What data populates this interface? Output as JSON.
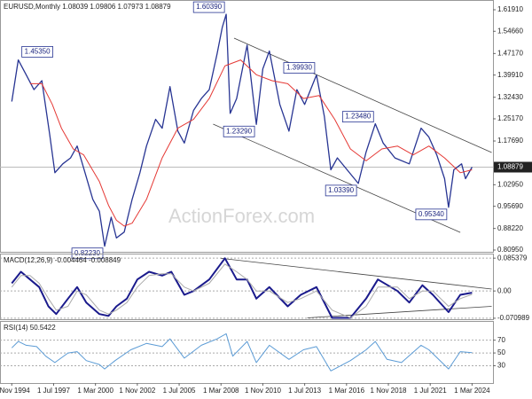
{
  "chart_data": [
    {
      "type": "line",
      "title": "EURUSD,Monthly  1.08039 1.09806 1.07973 1.08879",
      "watermark": "ActionForex.com",
      "xlim": [
        "1994-02",
        "2025-07"
      ],
      "ylim": [
        0.8035,
        1.652
      ],
      "yticks": [
        {
          "value": 0.8095,
          "label": "0.80950"
        },
        {
          "value": 0.8822,
          "label": "0.88220"
        },
        {
          "value": 0.9569,
          "label": "0.95690"
        },
        {
          "value": 1.0295,
          "label": "1.02950"
        },
        {
          "value": 1.1769,
          "label": "1.17690"
        },
        {
          "value": 1.2517,
          "label": "1.25170"
        },
        {
          "value": 1.3243,
          "label": "1.32430"
        },
        {
          "value": 1.3991,
          "label": "1.39910"
        },
        {
          "value": 1.4717,
          "label": "1.47170"
        },
        {
          "value": 1.5466,
          "label": "1.54660"
        },
        {
          "value": 1.6191,
          "label": "1.61910"
        }
      ],
      "last_value": 1.08879,
      "series": [
        {
          "color": "#283593",
          "width": 1.3,
          "x": [
            "1994-11",
            "1995-04",
            "1995-10",
            "1996-04",
            "1996-10",
            "1997-04",
            "1997-08",
            "1998-02",
            "1998-08",
            "1999-01",
            "1999-07",
            "2000-01",
            "2000-06",
            "2000-10",
            "2001-03",
            "2001-07",
            "2002-01",
            "2002-07",
            "2003-01",
            "2003-06",
            "2004-01",
            "2004-06",
            "2004-12",
            "2005-06",
            "2005-11",
            "2006-06",
            "2006-12",
            "2007-06",
            "2007-12",
            "2008-04",
            "2008-07",
            "2008-10",
            "2009-03",
            "2009-11",
            "2010-06",
            "2010-11",
            "2011-04",
            "2011-12",
            "2012-07",
            "2013-01",
            "2013-07",
            "2014-04",
            "2014-10",
            "2015-03",
            "2015-08",
            "2016-12",
            "2017-06",
            "2018-01",
            "2018-07",
            "2019-04",
            "2020-03",
            "2020-12",
            "2021-06",
            "2021-12",
            "2022-06",
            "2022-09",
            "2023-01",
            "2023-07",
            "2023-10",
            "2024-03"
          ],
          "values": [
            1.31,
            1.45,
            1.4,
            1.35,
            1.38,
            1.2,
            1.07,
            1.1,
            1.12,
            1.16,
            1.07,
            0.98,
            0.94,
            0.8223,
            0.92,
            0.85,
            0.87,
            0.98,
            1.07,
            1.16,
            1.25,
            1.22,
            1.36,
            1.21,
            1.17,
            1.28,
            1.32,
            1.35,
            1.47,
            1.56,
            1.6039,
            1.27,
            1.32,
            1.5,
            1.2329,
            1.42,
            1.48,
            1.3,
            1.21,
            1.35,
            1.3,
            1.3993,
            1.26,
            1.08,
            1.12,
            1.0339,
            1.14,
            1.2348,
            1.17,
            1.12,
            1.1,
            1.22,
            1.19,
            1.13,
            1.05,
            0.9534,
            1.08,
            1.1,
            1.05,
            1.08879
          ]
        },
        {
          "color": "#e53935",
          "width": 1,
          "x": [
            "1996-01",
            "1996-10",
            "1997-06",
            "1998-01",
            "1998-10",
            "1999-06",
            "2000-06",
            "2001-01",
            "2001-07",
            "2002-01",
            "2002-07",
            "2003-06",
            "2004-06",
            "2005-06",
            "2006-06",
            "2007-06",
            "2008-06",
            "2009-06",
            "2010-06",
            "2011-06",
            "2012-06",
            "2013-06",
            "2014-06",
            "2015-06",
            "2016-06",
            "2017-06",
            "2018-06",
            "2019-06",
            "2020-06",
            "2021-06",
            "2022-06",
            "2023-06",
            "2024-03"
          ],
          "values": [
            1.37,
            1.37,
            1.3,
            1.22,
            1.15,
            1.13,
            1.04,
            0.96,
            0.91,
            0.89,
            0.9,
            0.98,
            1.12,
            1.22,
            1.25,
            1.32,
            1.43,
            1.45,
            1.4,
            1.38,
            1.37,
            1.32,
            1.33,
            1.25,
            1.15,
            1.11,
            1.15,
            1.16,
            1.13,
            1.16,
            1.12,
            1.07,
            1.08
          ]
        }
      ],
      "trendlines": [
        {
          "x": [
            "2009-01",
            "2025-06"
          ],
          "y": [
            1.5235,
            1.138
          ]
        },
        {
          "x": [
            "2007-09",
            "2023-06"
          ],
          "y": [
            1.2336,
            0.869
          ]
        }
      ],
      "annotations": [
        {
          "x": "1995-04",
          "value": 1.4535,
          "label": "1.45350"
        },
        {
          "x": "2000-10",
          "value": 0.8223,
          "label": "0.82230"
        },
        {
          "x": "2008-07",
          "value": 1.6039,
          "label": "1.60390"
        },
        {
          "x": "2010-06",
          "value": 1.2329,
          "label": "1.23290"
        },
        {
          "x": "2014-04",
          "value": 1.3993,
          "label": "1.39930"
        },
        {
          "x": "2016-12",
          "value": 1.0339,
          "label": "1.03390"
        },
        {
          "x": "2018-01",
          "value": 1.2348,
          "label": "1.23480"
        },
        {
          "x": "2022-09",
          "value": 0.9534,
          "label": "0.95340"
        }
      ]
    },
    {
      "type": "line",
      "title": "MACD(12,26,9) -0.004464 -0.008849",
      "xlim": [
        "1994-02",
        "2025-07"
      ],
      "ylim": [
        -0.0735,
        0.0973
      ],
      "yticks": [
        -0.070989,
        {
          "value": 0,
          "label": "0.00"
        },
        0.085379
      ],
      "grid": true,
      "series": [
        {
          "color": "#1a1a8c",
          "width": 2,
          "x": [
            "1994-11",
            "1995-06",
            "1996-01",
            "1996-08",
            "1997-03",
            "1997-09",
            "1998-06",
            "1999-01",
            "1999-08",
            "2000-06",
            "2001-01",
            "2001-07",
            "2002-03",
            "2002-11",
            "2003-08",
            "2004-06",
            "2005-01",
            "2005-11",
            "2006-06",
            "2007-06",
            "2008-06",
            "2009-03",
            "2009-11",
            "2010-06",
            "2011-04",
            "2012-06",
            "2013-04",
            "2014-04",
            "2015-04",
            "2016-06",
            "2017-06",
            "2018-03",
            "2019-06",
            "2020-03",
            "2021-01",
            "2021-09",
            "2022-09",
            "2023-06",
            "2024-03"
          ],
          "values": [
            0.02,
            0.05,
            0.03,
            0.01,
            -0.04,
            -0.06,
            -0.02,
            0.01,
            -0.03,
            -0.06,
            -0.065,
            -0.04,
            -0.02,
            0.03,
            0.05,
            0.04,
            0.05,
            -0.01,
            0.0,
            0.03,
            0.085,
            0.03,
            0.03,
            -0.02,
            0.01,
            -0.04,
            -0.01,
            0.01,
            -0.07,
            -0.07,
            -0.02,
            0.03,
            0.0,
            -0.03,
            0.015,
            -0.01,
            -0.055,
            -0.01,
            -0.004464
          ]
        },
        {
          "color": "#aaaaaa",
          "width": 1,
          "x": [
            "1994-11",
            "1995-06",
            "1996-01",
            "1996-08",
            "1997-03",
            "1997-09",
            "1998-06",
            "1999-01",
            "1999-08",
            "2000-06",
            "2001-01",
            "2001-07",
            "2002-03",
            "2002-11",
            "2003-08",
            "2004-06",
            "2005-01",
            "2005-11",
            "2006-06",
            "2007-06",
            "2008-06",
            "2009-03",
            "2009-11",
            "2010-06",
            "2011-04",
            "2012-06",
            "2013-04",
            "2014-04",
            "2015-04",
            "2016-06",
            "2017-06",
            "2018-03",
            "2019-06",
            "2020-03",
            "2021-01",
            "2021-09",
            "2022-09",
            "2023-06",
            "2024-03"
          ],
          "values": [
            0.01,
            0.04,
            0.04,
            0.02,
            -0.02,
            -0.05,
            -0.04,
            0.0,
            -0.01,
            -0.05,
            -0.06,
            -0.05,
            -0.03,
            0.01,
            0.04,
            0.045,
            0.045,
            0.01,
            0.0,
            0.02,
            0.07,
            0.05,
            0.03,
            0.0,
            0.0,
            -0.03,
            -0.02,
            0.0,
            -0.05,
            -0.07,
            -0.04,
            0.01,
            0.01,
            -0.02,
            0.0,
            0.0,
            -0.04,
            -0.02,
            -0.008849
          ]
        }
      ],
      "trendlines": [
        {
          "x": [
            "2008-03",
            "2025-06"
          ],
          "y": [
            0.085,
            0.005
          ]
        },
        {
          "x": [
            "2013-09",
            "2025-06"
          ],
          "y": [
            -0.07,
            -0.04
          ]
        }
      ]
    },
    {
      "type": "line",
      "title": "RSI(14) 50.5422",
      "xlim": [
        "1994-02",
        "2025-07"
      ],
      "ylim": [
        3,
        100
      ],
      "yticks": [
        30,
        50,
        70
      ],
      "grid": true,
      "xticks": [
        {
          "value": "1994-11",
          "label": "1 Nov 1994"
        },
        {
          "value": "1997-07",
          "label": "1 Jul 1997"
        },
        {
          "value": "2000-03",
          "label": "1 Mar 2000"
        },
        {
          "value": "2002-11",
          "label": "1 Nov 2002"
        },
        {
          "value": "2005-07",
          "label": "1 Jul 2005"
        },
        {
          "value": "2008-03",
          "label": "1 Mar 2008"
        },
        {
          "value": "2010-11",
          "label": "1 Nov 2010"
        },
        {
          "value": "2013-07",
          "label": "1 Jul 2013"
        },
        {
          "value": "2016-03",
          "label": "1 Mar 2016"
        },
        {
          "value": "2018-11",
          "label": "1 Nov 2018"
        },
        {
          "value": "2021-07",
          "label": "1 Jul 2021"
        },
        {
          "value": "2024-03",
          "label": "1 Mar 2024"
        }
      ],
      "series": [
        {
          "color": "#5b9bd5",
          "width": 1,
          "x": [
            "1994-11",
            "1995-04",
            "1995-10",
            "1996-06",
            "1997-01",
            "1997-08",
            "1998-06",
            "1999-01",
            "1999-08",
            "2000-06",
            "2000-10",
            "2001-06",
            "2002-06",
            "2003-06",
            "2004-06",
            "2004-12",
            "2005-11",
            "2006-12",
            "2007-12",
            "2008-07",
            "2008-12",
            "2009-11",
            "2010-06",
            "2011-04",
            "2012-07",
            "2013-06",
            "2014-04",
            "2015-03",
            "2016-06",
            "2017-06",
            "2018-01",
            "2018-10",
            "2019-09",
            "2020-12",
            "2021-06",
            "2022-09",
            "2023-06",
            "2024-03"
          ],
          "values": [
            58,
            68,
            62,
            60,
            45,
            35,
            50,
            52,
            38,
            32,
            25,
            38,
            55,
            65,
            60,
            72,
            42,
            62,
            72,
            80,
            45,
            68,
            35,
            62,
            40,
            55,
            60,
            22,
            38,
            55,
            68,
            40,
            35,
            62,
            55,
            25,
            52,
            50.5422
          ]
        }
      ]
    }
  ]
}
